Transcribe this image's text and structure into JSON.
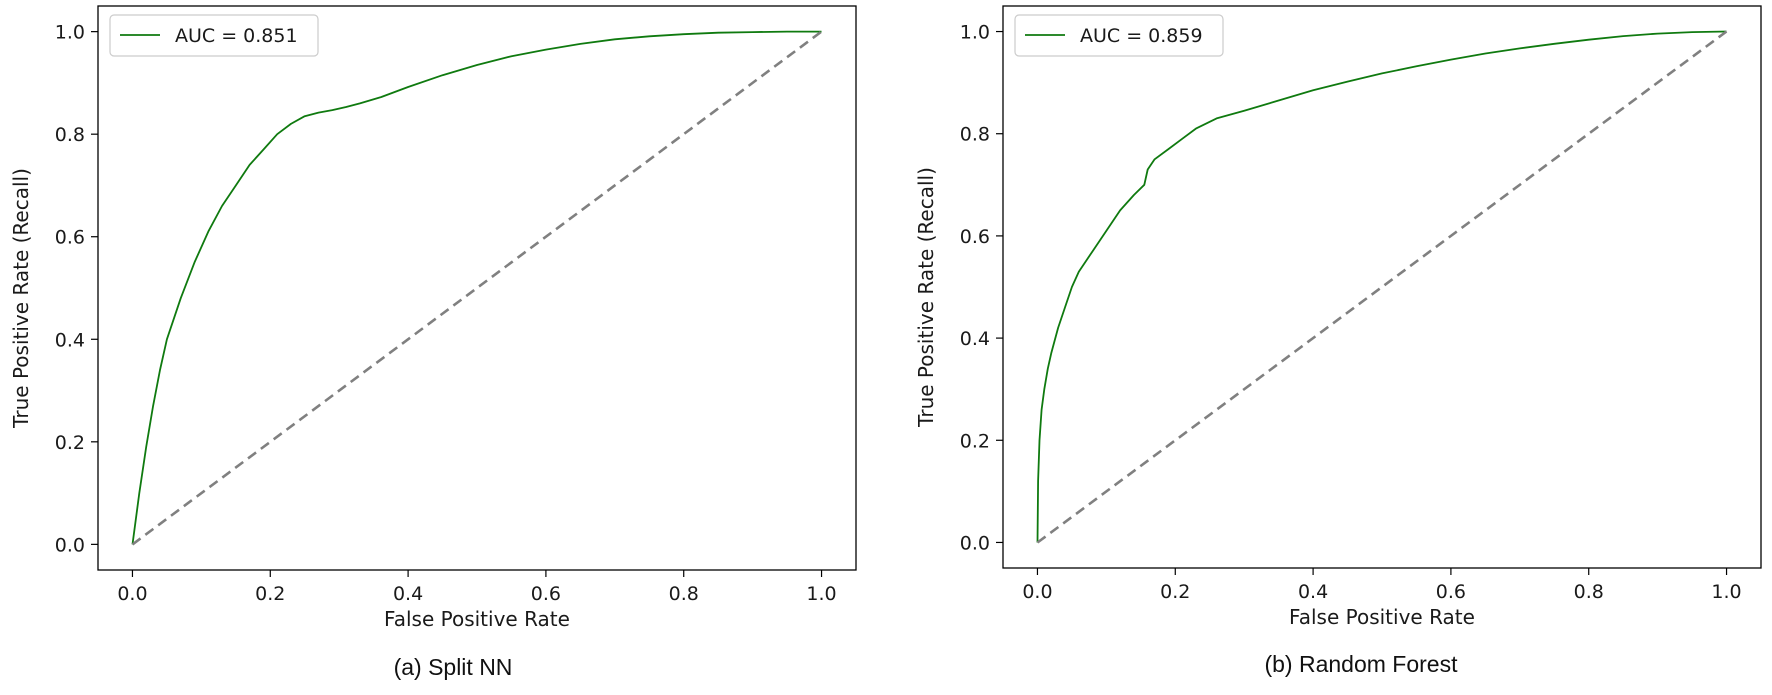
{
  "chart_data": [
    {
      "type": "line",
      "caption": "(a) Split NN",
      "title": "",
      "xlabel": "False Positive Rate",
      "ylabel": "True Positive Rate (Recall)",
      "xlim": [
        -0.05,
        1.05
      ],
      "ylim": [
        -0.05,
        1.05
      ],
      "xticks": [
        "0.0",
        "0.2",
        "0.4",
        "0.6",
        "0.8",
        "1.0"
      ],
      "yticks": [
        "0.0",
        "0.2",
        "0.4",
        "0.6",
        "0.8",
        "1.0"
      ],
      "grid": false,
      "legend_position": "upper-left",
      "series": [
        {
          "name": "AUC = 0.851",
          "color": "#0f7a0f",
          "style": "solid",
          "x": [
            0.0,
            0.01,
            0.02,
            0.03,
            0.04,
            0.05,
            0.07,
            0.09,
            0.11,
            0.13,
            0.15,
            0.17,
            0.19,
            0.21,
            0.23,
            0.25,
            0.27,
            0.29,
            0.31,
            0.33,
            0.36,
            0.4,
            0.45,
            0.5,
            0.55,
            0.6,
            0.65,
            0.7,
            0.75,
            0.8,
            0.85,
            0.9,
            0.95,
            1.0
          ],
          "y": [
            0.0,
            0.1,
            0.19,
            0.27,
            0.34,
            0.4,
            0.48,
            0.55,
            0.61,
            0.66,
            0.7,
            0.74,
            0.77,
            0.8,
            0.82,
            0.835,
            0.842,
            0.847,
            0.853,
            0.86,
            0.872,
            0.892,
            0.915,
            0.935,
            0.952,
            0.965,
            0.976,
            0.985,
            0.991,
            0.995,
            0.998,
            0.999,
            1.0,
            1.0
          ]
        },
        {
          "name": "",
          "color": "#808080",
          "style": "dashed",
          "x": [
            0.0,
            1.0
          ],
          "y": [
            0.0,
            1.0
          ]
        }
      ]
    },
    {
      "type": "line",
      "caption": "(b) Random Forest",
      "title": "",
      "xlabel": "False Positive Rate",
      "ylabel": "True Positive Rate (Recall)",
      "xlim": [
        -0.05,
        1.05
      ],
      "ylim": [
        -0.05,
        1.05
      ],
      "xticks": [
        "0.0",
        "0.2",
        "0.4",
        "0.6",
        "0.8",
        "1.0"
      ],
      "yticks": [
        "0.0",
        "0.2",
        "0.4",
        "0.6",
        "0.8",
        "1.0"
      ],
      "grid": false,
      "legend_position": "upper-left",
      "series": [
        {
          "name": "AUC = 0.859",
          "color": "#0f7a0f",
          "style": "solid",
          "x": [
            0.0,
            0.001,
            0.003,
            0.006,
            0.01,
            0.015,
            0.02,
            0.03,
            0.04,
            0.05,
            0.06,
            0.08,
            0.1,
            0.12,
            0.14,
            0.155,
            0.16,
            0.17,
            0.19,
            0.21,
            0.23,
            0.26,
            0.3,
            0.35,
            0.4,
            0.45,
            0.5,
            0.55,
            0.6,
            0.65,
            0.7,
            0.75,
            0.8,
            0.85,
            0.9,
            0.95,
            1.0
          ],
          "y": [
            0.0,
            0.12,
            0.2,
            0.26,
            0.3,
            0.34,
            0.37,
            0.42,
            0.46,
            0.5,
            0.53,
            0.57,
            0.61,
            0.65,
            0.68,
            0.7,
            0.73,
            0.75,
            0.77,
            0.79,
            0.81,
            0.83,
            0.845,
            0.865,
            0.885,
            0.902,
            0.918,
            0.932,
            0.945,
            0.957,
            0.967,
            0.976,
            0.984,
            0.991,
            0.996,
            0.999,
            1.0
          ]
        },
        {
          "name": "",
          "color": "#808080",
          "style": "dashed",
          "x": [
            0.0,
            1.0
          ],
          "y": [
            0.0,
            1.0
          ]
        }
      ]
    }
  ]
}
